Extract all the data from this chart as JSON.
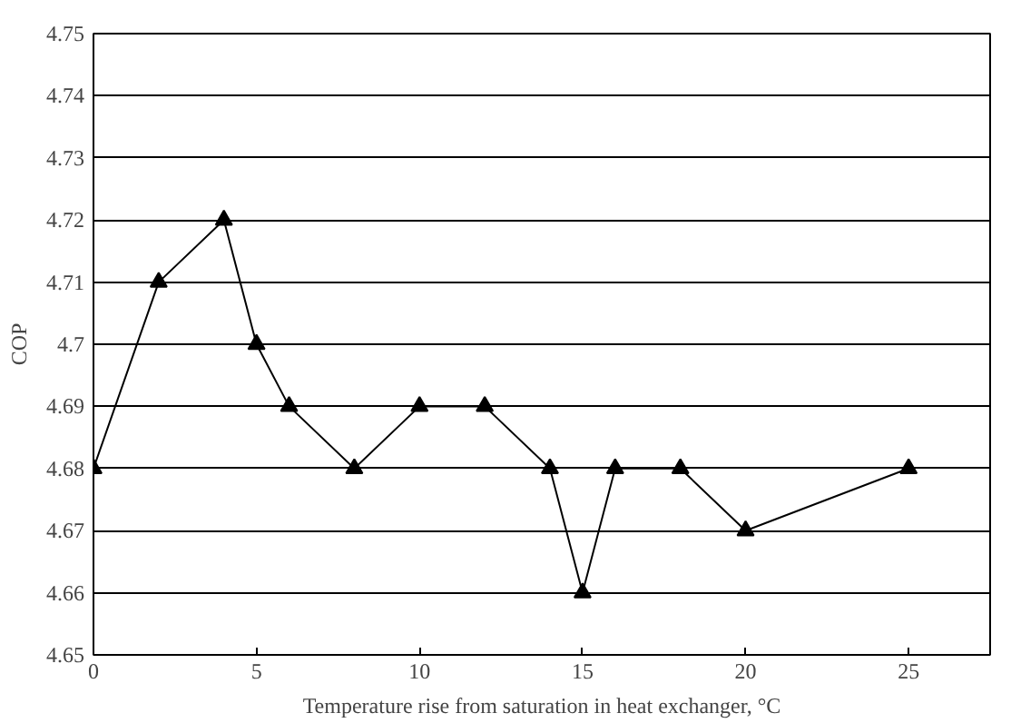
{
  "chart_data": {
    "type": "line",
    "xlabel": "Temperature rise from saturation in heat exchanger, °C",
    "ylabel": "COP",
    "x": [
      0,
      2,
      4,
      5,
      6,
      8,
      10,
      12,
      14,
      15,
      16,
      18,
      20,
      25
    ],
    "series": [
      {
        "color": "#000000",
        "values": [
          4.68,
          4.71,
          4.72,
          4.7,
          4.69,
          4.68,
          4.69,
          4.69,
          4.68,
          4.66,
          4.68,
          4.68,
          4.67,
          4.68
        ]
      }
    ],
    "xlim": [
      0,
      27.5
    ],
    "xticks": [
      0,
      5,
      10,
      15,
      20,
      25
    ],
    "ylim": [
      4.65,
      4.75
    ],
    "yticks": [
      4.65,
      4.66,
      4.67,
      4.68,
      4.69,
      {
        "value": 4.7,
        "label": "4.7"
      },
      4.71,
      4.72,
      4.73,
      4.74,
      4.75
    ],
    "grid": "y",
    "marker": "triangle",
    "line_style": "solid"
  }
}
